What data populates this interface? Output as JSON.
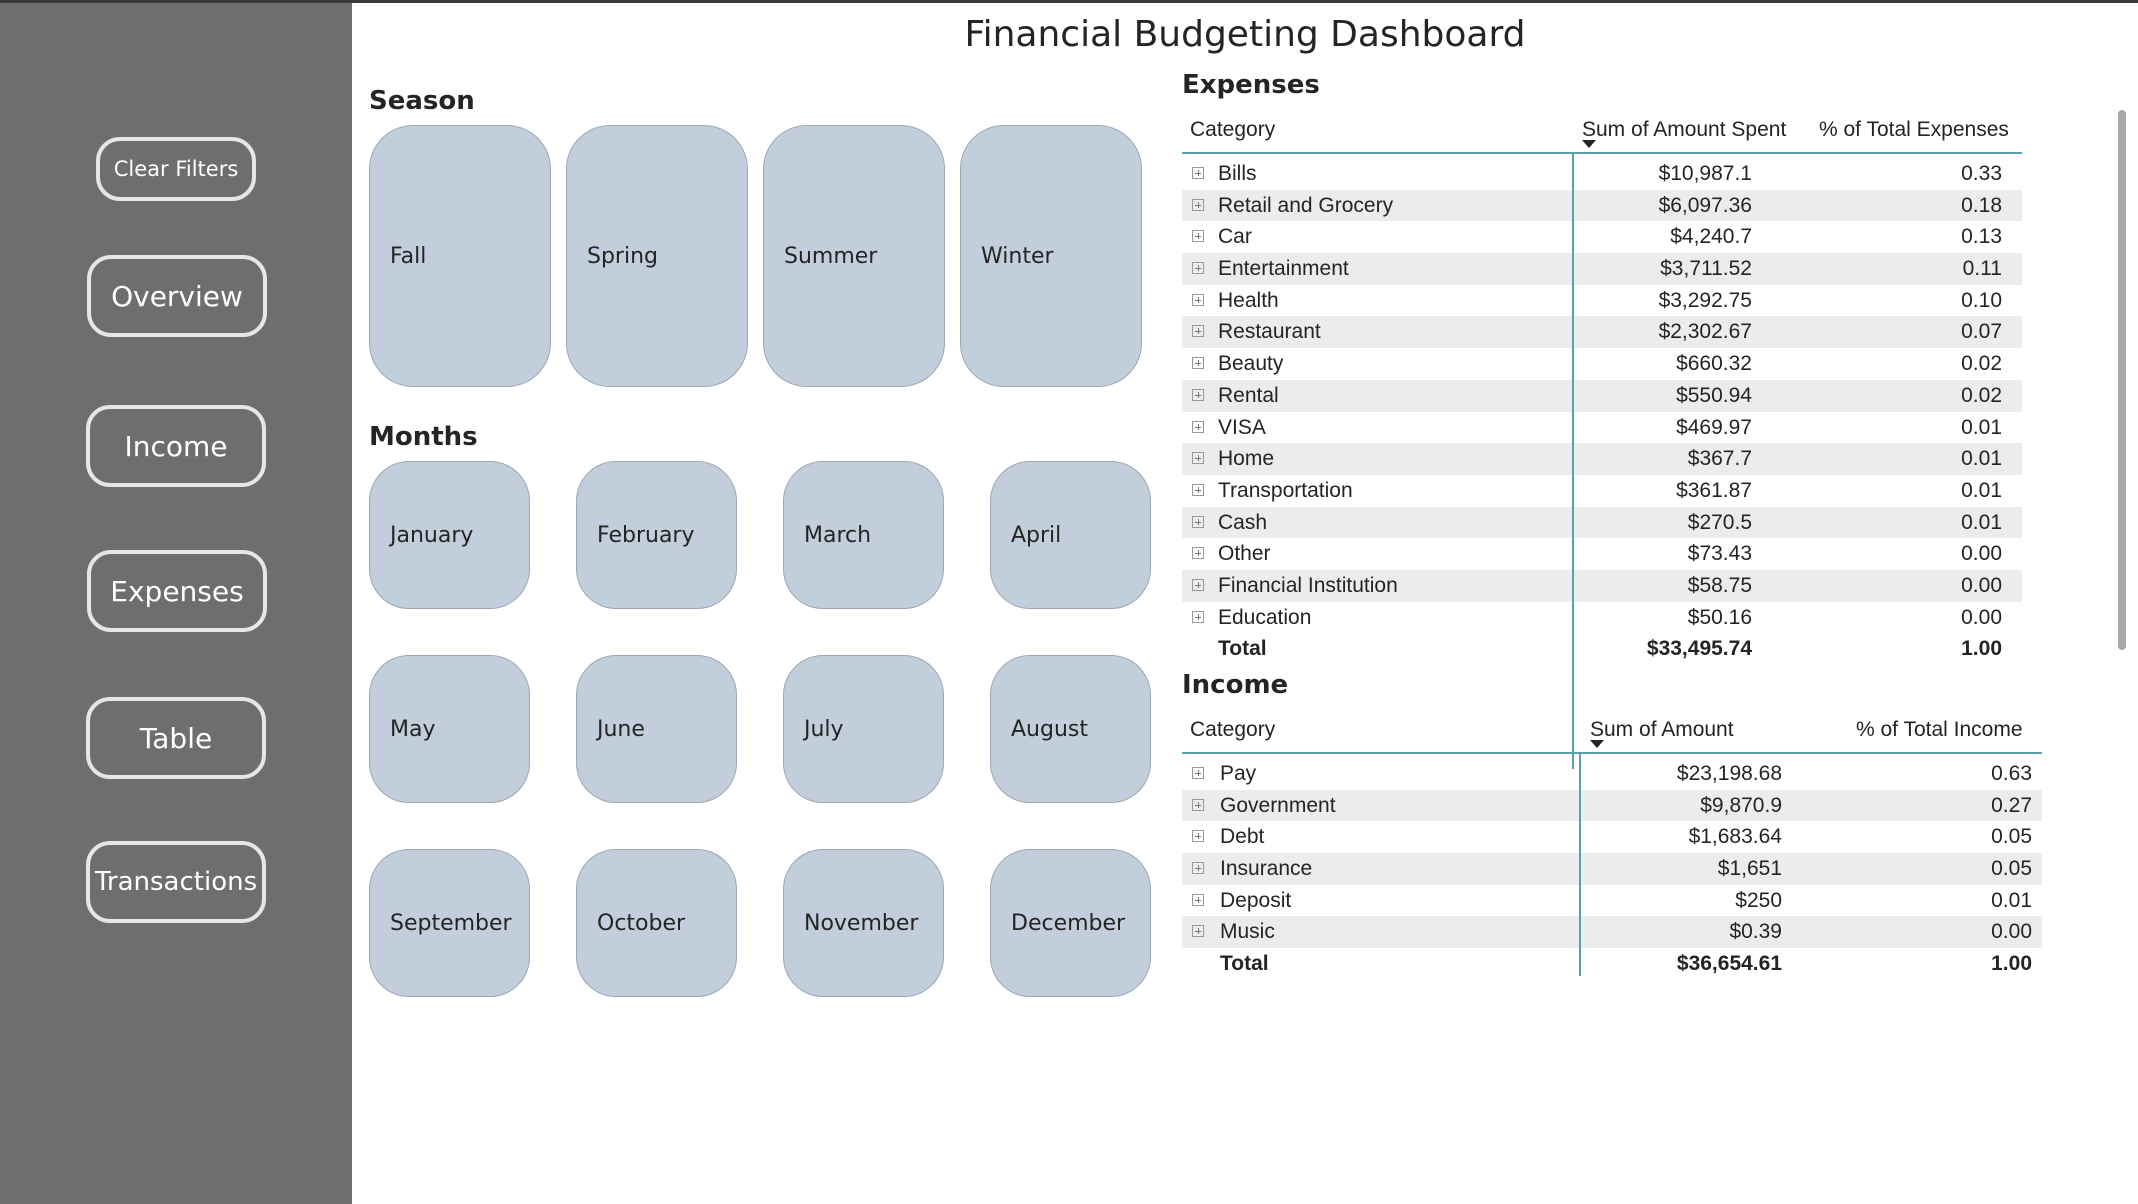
{
  "title": "Financial Budgeting Dashboard",
  "sidebar": {
    "buttons": [
      "Clear Filters",
      "Overview",
      "Income",
      "Expenses",
      "Table",
      "Transactions"
    ]
  },
  "season": {
    "label": "Season",
    "items": [
      "Fall",
      "Spring",
      "Summer",
      "Winter"
    ]
  },
  "months": {
    "label": "Months",
    "items": [
      "January",
      "February",
      "March",
      "April",
      "May",
      "June",
      "July",
      "August",
      "September",
      "October",
      "November",
      "December"
    ]
  },
  "expenses": {
    "label": "Expenses",
    "headers": [
      "Category",
      "Sum of Amount Spent",
      "% of Total Expenses"
    ],
    "rows": [
      [
        "Bills",
        "$10,987.1",
        "0.33"
      ],
      [
        "Retail and Grocery",
        "$6,097.36",
        "0.18"
      ],
      [
        "Car",
        "$4,240.7",
        "0.13"
      ],
      [
        "Entertainment",
        "$3,711.52",
        "0.11"
      ],
      [
        "Health",
        "$3,292.75",
        "0.10"
      ],
      [
        "Restaurant",
        "$2,302.67",
        "0.07"
      ],
      [
        "Beauty",
        "$660.32",
        "0.02"
      ],
      [
        "Rental",
        "$550.94",
        "0.02"
      ],
      [
        "VISA",
        "$469.97",
        "0.01"
      ],
      [
        "Home",
        "$367.7",
        "0.01"
      ],
      [
        "Transportation",
        "$361.87",
        "0.01"
      ],
      [
        "Cash",
        "$270.5",
        "0.01"
      ],
      [
        "Other",
        "$73.43",
        "0.00"
      ],
      [
        "Financial Institution",
        "$58.75",
        "0.00"
      ],
      [
        "Education",
        "$50.16",
        "0.00"
      ]
    ],
    "total": [
      "Total",
      "$33,495.74",
      "1.00"
    ]
  },
  "income": {
    "label": "Income",
    "headers": [
      "Category",
      "Sum of Amount",
      "% of Total Income"
    ],
    "rows": [
      [
        "Pay",
        "$23,198.68",
        "0.63"
      ],
      [
        "Government",
        "$9,870.9",
        "0.27"
      ],
      [
        "Debt",
        "$1,683.64",
        "0.05"
      ],
      [
        "Insurance",
        "$1,651",
        "0.05"
      ],
      [
        "Deposit",
        "$250",
        "0.01"
      ],
      [
        "Music",
        "$0.39",
        "0.00"
      ]
    ],
    "total": [
      "Total",
      "$36,654.61",
      "1.00"
    ]
  }
}
